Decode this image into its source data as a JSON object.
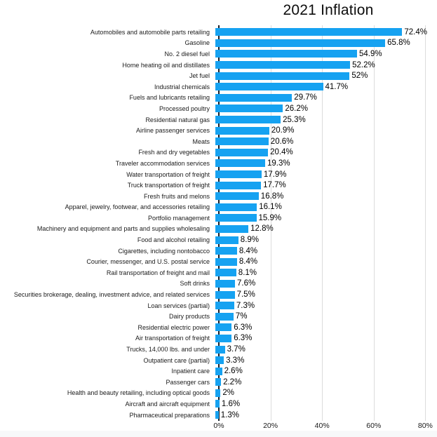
{
  "title": "2021 Inflation",
  "chart_data": {
    "type": "bar",
    "orientation": "horizontal",
    "title": "2021 Inflation",
    "categories": [
      "Automobiles and automobile parts retailing",
      "Gasoline",
      "No. 2 diesel fuel",
      "Home heating oil and distillates",
      "Jet fuel",
      "Industrial chemicals",
      "Fuels and lubricants retailing",
      "Processed poultry",
      "Residential natural gas",
      "Airline passenger services",
      "Meats",
      "Fresh and dry vegetables",
      "Traveler accommodation services",
      "Water transportation of freight",
      "Truck transportation of freight",
      "Fresh fruits and melons",
      "Apparel, jewelry, footwear, and accessories retailing",
      "Portfolio management",
      "Machinery and equipment and parts and supplies wholesaling",
      "Food and alcohol retailing",
      "Cigarettes, including nontobacco",
      "Courier, messenger, and U.S. postal service",
      "Rail transportation of freight and mail",
      "Soft drinks",
      "Securities brokerage, dealing, investment advice, and related services",
      "Loan services (partial)",
      "Dairy products",
      "Residential electric power",
      "Air transportation of freight",
      "Trucks, 14,000 lbs. and under",
      "Outpatient care (partial)",
      "Inpatient care",
      "Passenger cars",
      "Health and beauty retailing, including optical goods",
      "Aircraft and aircraft equipment",
      "Pharmaceutical preparations"
    ],
    "values": [
      72.4,
      65.8,
      54.9,
      52.2,
      52,
      41.7,
      29.7,
      26.2,
      25.3,
      20.9,
      20.6,
      20.4,
      19.3,
      17.9,
      17.7,
      16.8,
      16.1,
      15.9,
      12.8,
      8.9,
      8.4,
      8.4,
      8.1,
      7.6,
      7.5,
      7.3,
      7,
      6.3,
      6.3,
      3.7,
      3.3,
      2.6,
      2.2,
      2,
      1.6,
      1.3
    ],
    "value_labels": [
      "72.4%",
      "65.8%",
      "54.9%",
      "52.2%",
      "52%",
      "41.7%",
      "29.7%",
      "26.2%",
      "25.3%",
      "20.9%",
      "20.6%",
      "20.4%",
      "19.3%",
      "17.9%",
      "17.7%",
      "16.8%",
      "16.1%",
      "15.9%",
      "12.8%",
      "8.9%",
      "8.4%",
      "8.4%",
      "8.1%",
      "7.6%",
      "7.5%",
      "7.3%",
      "7%",
      "6.3%",
      "6.3%",
      "3.7%",
      "3.3%",
      "2.6%",
      "2.2%",
      "2%",
      "1.6%",
      "1.3%"
    ],
    "x_ticks": [
      "0%",
      "20%",
      "40%",
      "60%",
      "80%"
    ],
    "x_tick_values": [
      0,
      20,
      40,
      60,
      80
    ],
    "xlim": [
      0,
      82
    ],
    "grid": "vertical",
    "legend_position": "none",
    "bar_color": "#16a2f1",
    "gridline_color": "#dcdcdc",
    "axis_line_color": "#17202a",
    "text_color": "#000000"
  }
}
